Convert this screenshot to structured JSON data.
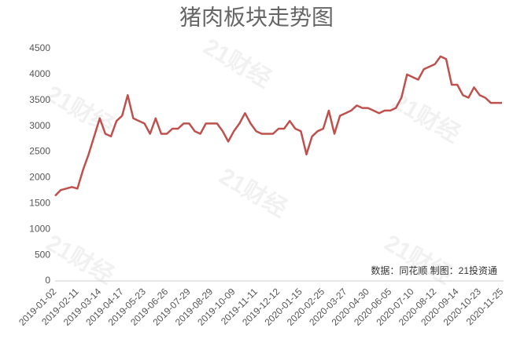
{
  "chart_data": {
    "type": "line",
    "title": "猪肉板块走势图",
    "source": "数据：同花顺  制图：21投资通",
    "watermark": "21财经",
    "categories": [
      "2019-01-02",
      null,
      null,
      null,
      "2019-02-11",
      null,
      null,
      null,
      "2019-03-14",
      null,
      null,
      null,
      "2019-04-17",
      null,
      null,
      null,
      "2019-05-23",
      null,
      null,
      null,
      "2019-06-26",
      null,
      null,
      null,
      "2019-07-29",
      null,
      null,
      null,
      "2019-08-29",
      null,
      null,
      null,
      "2019-10-09",
      null,
      null,
      null,
      "2019-11-11",
      null,
      null,
      null,
      "2019-12-12",
      null,
      null,
      null,
      "2020-01-15",
      null,
      null,
      null,
      "2020-02-25",
      null,
      null,
      null,
      "2020-03-27",
      null,
      null,
      null,
      "2020-04-30",
      null,
      null,
      null,
      "2020-06-05",
      null,
      null,
      null,
      "2020-07-10",
      null,
      null,
      null,
      "2020-08-12",
      null,
      null,
      null,
      "2020-09-14",
      null,
      null,
      null,
      "2020-10-23",
      null,
      null,
      null,
      "2020-11-25"
    ],
    "series": [
      {
        "name": "猪肉板块",
        "color": "#c0504d",
        "values": [
          1650,
          1760,
          1790,
          1820,
          1790,
          2150,
          2450,
          2800,
          3150,
          2850,
          2800,
          3100,
          3200,
          3600,
          3150,
          3100,
          3050,
          2850,
          3150,
          2850,
          2850,
          2950,
          2950,
          3050,
          3050,
          2900,
          2850,
          3050,
          3050,
          3050,
          2900,
          2700,
          2900,
          3050,
          3250,
          3050,
          2900,
          2850,
          2850,
          2850,
          2950,
          2950,
          3100,
          2950,
          2900,
          2450,
          2800,
          2900,
          2950,
          3300,
          2850,
          3200,
          3250,
          3300,
          3400,
          3350,
          3350,
          3300,
          3250,
          3300,
          3300,
          3350,
          3550,
          4000,
          3950,
          3900,
          4100,
          4150,
          4200,
          4350,
          4300,
          3800,
          3800,
          3600,
          3550,
          3750,
          3600,
          3550,
          3450,
          3450,
          3450
        ]
      }
    ],
    "ylim": [
      0,
      4500
    ],
    "yticks": [
      0,
      500,
      1000,
      1500,
      2000,
      2500,
      3000,
      3500,
      4000,
      4500
    ],
    "grid": false
  }
}
